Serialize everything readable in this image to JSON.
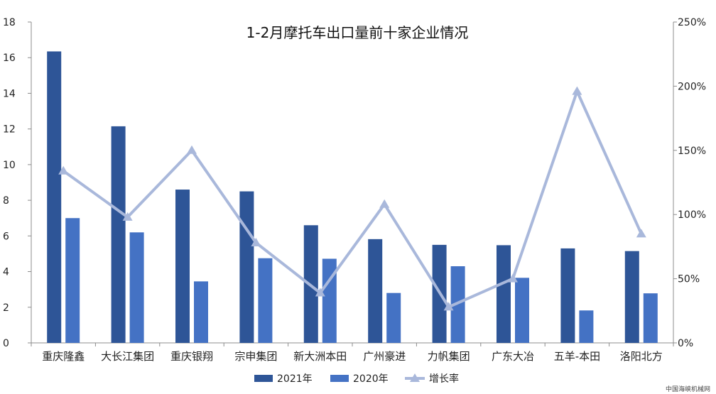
{
  "chart_data": {
    "type": "bar",
    "title": "1-2月摩托车出口量前十家企业情况",
    "categories": [
      "重庆隆鑫",
      "大长江集团",
      "重庆银翔",
      "宗申集团",
      "新大洲本田",
      "广州豪进",
      "力帆集团",
      "广东大冶",
      "五羊-本田",
      "洛阳北方"
    ],
    "series": [
      {
        "name": "2021年",
        "type": "bar",
        "axis": "left",
        "color": "#2e5597",
        "values": [
          16.35,
          12.15,
          8.6,
          8.5,
          6.6,
          5.82,
          5.5,
          5.48,
          5.3,
          5.15
        ]
      },
      {
        "name": "2020年",
        "type": "bar",
        "axis": "left",
        "color": "#4472c4",
        "values": [
          7.0,
          6.2,
          3.45,
          4.75,
          4.72,
          2.8,
          4.3,
          3.65,
          1.82,
          2.78
        ]
      },
      {
        "name": "增长率",
        "type": "line",
        "axis": "right",
        "color": "#a9b8db",
        "marker": "triangle",
        "values": [
          134,
          98,
          150,
          78,
          39,
          108,
          28,
          50,
          196,
          85
        ]
      }
    ],
    "y_left": {
      "min": 0,
      "max": 18,
      "step": 2,
      "tick_labels": [
        "0",
        "2",
        "4",
        "6",
        "8",
        "10",
        "12",
        "14",
        "16",
        "18"
      ]
    },
    "y_right": {
      "min": 0,
      "max": 250,
      "step": 50,
      "tick_labels": [
        "0%",
        "50%",
        "100%",
        "150%",
        "200%",
        "250%"
      ]
    },
    "grid": false,
    "legend": "bottom"
  },
  "watermark": "中国海峡机械网"
}
